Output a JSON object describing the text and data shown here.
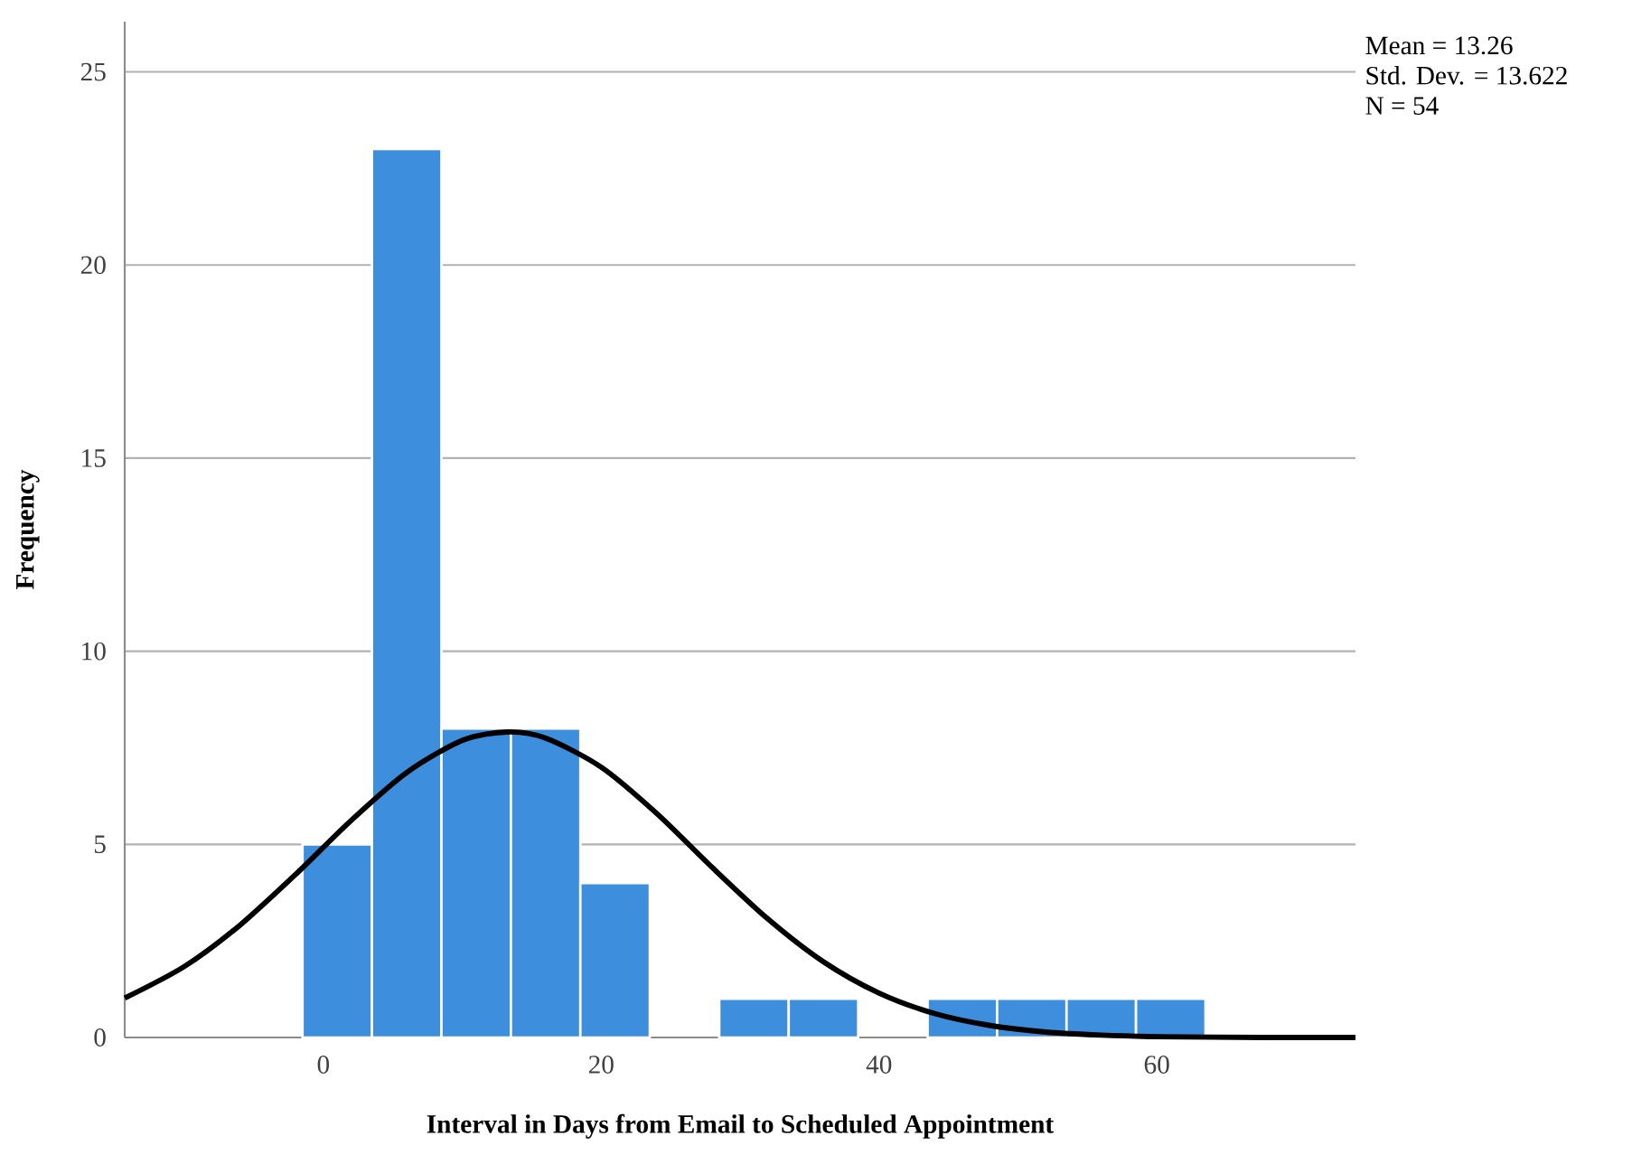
{
  "chart_data": {
    "type": "histogram",
    "xlabel": "Interval in Days from Email to Scheduled Appointment",
    "ylabel": "Frequency",
    "bins": [
      -1.5,
      3.5,
      8.5,
      13.5,
      18.5,
      23.5,
      28.5,
      33.5,
      38.5,
      43.5,
      48.5,
      53.5,
      58.5,
      63.5
    ],
    "values": [
      5,
      23,
      8,
      8,
      4,
      0,
      1,
      1,
      0,
      1,
      1,
      1,
      1
    ],
    "color": "#3e8ede",
    "series": [
      {
        "type": "line",
        "color": "#000000",
        "x": [
          -14.3,
          -10,
          -6,
          -2,
          2,
          6,
          10,
          13.26,
          16,
          20,
          24,
          28,
          32,
          36,
          40,
          44,
          48,
          52,
          56,
          60,
          64,
          68,
          74.3
        ],
        "values": [
          1.02,
          1.84,
          2.91,
          4.22,
          5.62,
          6.86,
          7.69,
          7.91,
          7.75,
          7.0,
          5.8,
          4.4,
          3.07,
          1.96,
          1.15,
          0.62,
          0.31,
          0.14,
          0.06,
          0.02,
          0.01,
          0,
          0
        ]
      }
    ],
    "xlim": [
      -14.3,
      74.3
    ],
    "ylim": [
      0,
      26.3
    ],
    "xticks": [
      0,
      20,
      40,
      60
    ],
    "yticks": [
      0,
      5,
      10,
      15,
      20,
      25
    ],
    "grid": "y",
    "annotations": [
      "Mean = 13.26",
      "Std. Dev. = 13.622",
      "N = 54"
    ]
  }
}
